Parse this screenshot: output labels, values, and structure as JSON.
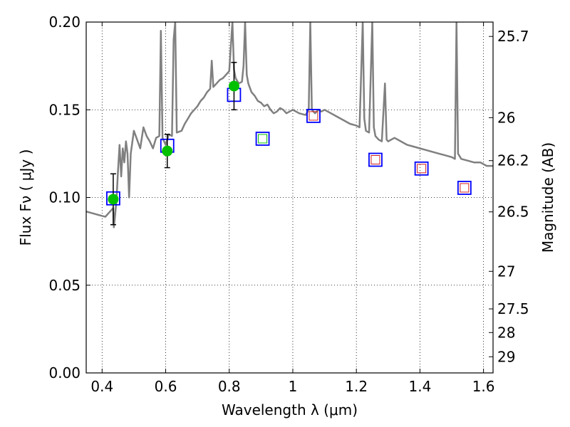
{
  "chart_data": {
    "type": "scatter",
    "xlabel": "Wavelength  λ (μm)",
    "ylabel": "Flux  Fν  ( μJy )",
    "y2label": "Magnitude (AB)",
    "xlim": [
      0.35,
      1.63
    ],
    "ylim": [
      0.0,
      0.2
    ],
    "grid": true,
    "x_ticks": [
      0.4,
      0.6,
      0.8,
      1.0,
      1.2,
      1.4,
      1.6
    ],
    "x_tick_labels": [
      "0.4",
      "0.6",
      "0.8",
      "1",
      "1.2",
      "1.4",
      "1.6"
    ],
    "y_ticks": [
      0.0,
      0.05,
      0.1,
      0.15,
      0.2
    ],
    "y_tick_labels": [
      "0.00",
      "0.05",
      "0.10",
      "0.15",
      "0.20"
    ],
    "y2_ticks": [
      {
        "label": "25.7",
        "flux": 0.1918
      },
      {
        "label": "26",
        "flux": 0.1455
      },
      {
        "label": "26.2",
        "flux": 0.121
      },
      {
        "label": "26.5",
        "flux": 0.0918
      },
      {
        "label": "27",
        "flux": 0.0579
      },
      {
        "label": "27.5",
        "flux": 0.0365
      },
      {
        "label": "28",
        "flux": 0.023
      },
      {
        "label": "29",
        "flux": 0.0092
      }
    ],
    "colors": {
      "spectrum": "#808080",
      "observed": "#00c000",
      "model_box": "#0000ff",
      "model_inner_red": "#d22020",
      "model_inner_green": "#00c000"
    },
    "series": [
      {
        "kind": "spectrum-line",
        "points": [
          [
            0.35,
            0.092
          ],
          [
            0.37,
            0.091
          ],
          [
            0.39,
            0.09
          ],
          [
            0.41,
            0.089
          ],
          [
            0.425,
            0.092
          ],
          [
            0.435,
            0.094
          ],
          [
            0.437,
            0.083
          ],
          [
            0.44,
            0.088
          ],
          [
            0.445,
            0.098
          ],
          [
            0.45,
            0.115
          ],
          [
            0.455,
            0.13
          ],
          [
            0.46,
            0.112
          ],
          [
            0.465,
            0.128
          ],
          [
            0.47,
            0.12
          ],
          [
            0.475,
            0.132
          ],
          [
            0.48,
            0.125
          ],
          [
            0.485,
            0.1
          ],
          [
            0.49,
            0.125
          ],
          [
            0.5,
            0.138
          ],
          [
            0.51,
            0.133
          ],
          [
            0.52,
            0.128
          ],
          [
            0.53,
            0.14
          ],
          [
            0.54,
            0.135
          ],
          [
            0.55,
            0.132
          ],
          [
            0.56,
            0.128
          ],
          [
            0.57,
            0.134
          ],
          [
            0.58,
            0.135
          ],
          [
            0.585,
            0.195
          ],
          [
            0.59,
            0.134
          ],
          [
            0.6,
            0.13
          ],
          [
            0.605,
            0.133
          ],
          [
            0.61,
            0.136
          ],
          [
            0.62,
            0.135
          ],
          [
            0.625,
            0.19
          ],
          [
            0.63,
            0.2
          ],
          [
            0.635,
            0.137
          ],
          [
            0.65,
            0.138
          ],
          [
            0.66,
            0.142
          ],
          [
            0.67,
            0.145
          ],
          [
            0.68,
            0.148
          ],
          [
            0.69,
            0.15
          ],
          [
            0.7,
            0.152
          ],
          [
            0.71,
            0.155
          ],
          [
            0.72,
            0.157
          ],
          [
            0.73,
            0.16
          ],
          [
            0.74,
            0.162
          ],
          [
            0.745,
            0.178
          ],
          [
            0.75,
            0.163
          ],
          [
            0.76,
            0.165
          ],
          [
            0.77,
            0.167
          ],
          [
            0.78,
            0.168
          ],
          [
            0.79,
            0.17
          ],
          [
            0.8,
            0.172
          ],
          [
            0.81,
            0.2
          ],
          [
            0.815,
            0.173
          ],
          [
            0.82,
            0.168
          ],
          [
            0.83,
            0.165
          ],
          [
            0.84,
            0.166
          ],
          [
            0.845,
            0.175
          ],
          [
            0.85,
            0.2
          ],
          [
            0.855,
            0.17
          ],
          [
            0.86,
            0.165
          ],
          [
            0.87,
            0.16
          ],
          [
            0.88,
            0.158
          ],
          [
            0.89,
            0.155
          ],
          [
            0.9,
            0.154
          ],
          [
            0.91,
            0.152
          ],
          [
            0.92,
            0.153
          ],
          [
            0.93,
            0.15
          ],
          [
            0.94,
            0.148
          ],
          [
            0.95,
            0.149
          ],
          [
            0.96,
            0.151
          ],
          [
            0.97,
            0.15
          ],
          [
            0.98,
            0.148
          ],
          [
            0.99,
            0.149
          ],
          [
            1.0,
            0.15
          ],
          [
            1.02,
            0.148
          ],
          [
            1.04,
            0.147
          ],
          [
            1.05,
            0.15
          ],
          [
            1.055,
            0.2
          ],
          [
            1.06,
            0.15
          ],
          [
            1.07,
            0.148
          ],
          [
            1.08,
            0.15
          ],
          [
            1.09,
            0.149
          ],
          [
            1.1,
            0.15
          ],
          [
            1.12,
            0.148
          ],
          [
            1.14,
            0.146
          ],
          [
            1.16,
            0.144
          ],
          [
            1.18,
            0.142
          ],
          [
            1.2,
            0.141
          ],
          [
            1.21,
            0.14
          ],
          [
            1.22,
            0.2
          ],
          [
            1.225,
            0.145
          ],
          [
            1.23,
            0.138
          ],
          [
            1.24,
            0.137
          ],
          [
            1.25,
            0.2
          ],
          [
            1.255,
            0.14
          ],
          [
            1.26,
            0.135
          ],
          [
            1.27,
            0.133
          ],
          [
            1.28,
            0.132
          ],
          [
            1.29,
            0.165
          ],
          [
            1.295,
            0.133
          ],
          [
            1.3,
            0.132
          ],
          [
            1.32,
            0.134
          ],
          [
            1.34,
            0.132
          ],
          [
            1.36,
            0.13
          ],
          [
            1.38,
            0.129
          ],
          [
            1.4,
            0.128
          ],
          [
            1.42,
            0.127
          ],
          [
            1.44,
            0.126
          ],
          [
            1.46,
            0.125
          ],
          [
            1.48,
            0.124
          ],
          [
            1.5,
            0.123
          ],
          [
            1.51,
            0.122
          ],
          [
            1.515,
            0.2
          ],
          [
            1.52,
            0.125
          ],
          [
            1.53,
            0.122
          ],
          [
            1.55,
            0.121
          ],
          [
            1.57,
            0.12
          ],
          [
            1.59,
            0.12
          ],
          [
            1.6,
            0.119
          ],
          [
            1.61,
            0.118
          ],
          [
            1.63,
            0.118
          ]
        ]
      },
      {
        "kind": "observed",
        "points": [
          {
            "x": 0.435,
            "y": 0.099,
            "err": 0.0145
          },
          {
            "x": 0.605,
            "y": 0.1265,
            "err": 0.0095
          },
          {
            "x": 0.815,
            "y": 0.1635,
            "err": 0.0135
          }
        ]
      },
      {
        "kind": "model",
        "points": [
          {
            "x": 0.435,
            "y": 0.0995,
            "inner": "none"
          },
          {
            "x": 0.605,
            "y": 0.1295,
            "inner": "none"
          },
          {
            "x": 0.815,
            "y": 0.1585,
            "inner": "none"
          },
          {
            "x": 0.905,
            "y": 0.1335,
            "inner": "green"
          },
          {
            "x": 1.065,
            "y": 0.1465,
            "inner": "red"
          },
          {
            "x": 1.26,
            "y": 0.1215,
            "inner": "red"
          },
          {
            "x": 1.405,
            "y": 0.1165,
            "inner": "red"
          },
          {
            "x": 1.54,
            "y": 0.1055,
            "inner": "red"
          }
        ]
      }
    ]
  }
}
